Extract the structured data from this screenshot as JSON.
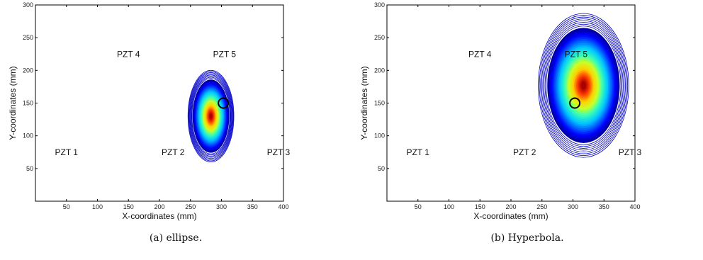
{
  "chart_data": [
    {
      "type": "contour",
      "caption": "(a) ellipse.",
      "xlabel": "X-coordinates (mm)",
      "ylabel": "Y-coordinates (mm)",
      "xlim": [
        0,
        400
      ],
      "ylim": [
        0,
        300
      ],
      "xticks": [
        50,
        100,
        150,
        200,
        250,
        300,
        350,
        400
      ],
      "yticks": [
        50,
        100,
        150,
        200,
        250,
        300
      ],
      "grid": false,
      "sensors": [
        {
          "label": "PZT 1",
          "x": 50,
          "y": 75
        },
        {
          "label": "PZT 2",
          "x": 222,
          "y": 75
        },
        {
          "label": "PZT 3",
          "x": 392,
          "y": 75
        },
        {
          "label": "PZT 4",
          "x": 150,
          "y": 225
        },
        {
          "label": "PZT 5",
          "x": 305,
          "y": 225
        }
      ],
      "probability_peak": {
        "x": 283,
        "y": 130,
        "rx": 37,
        "ry": 70
      },
      "actual_damage": {
        "x": 303,
        "y": 150
      }
    },
    {
      "type": "contour",
      "caption": "(b) Hyperbola.",
      "xlabel": "X-coordinates (mm)",
      "ylabel": "Y-coordinates (mm)",
      "xlim": [
        0,
        400
      ],
      "ylim": [
        0,
        300
      ],
      "xticks": [
        50,
        100,
        150,
        200,
        250,
        300,
        350,
        400
      ],
      "yticks": [
        50,
        100,
        150,
        200,
        250,
        300
      ],
      "grid": false,
      "sensors": [
        {
          "label": "PZT 1",
          "x": 50,
          "y": 75
        },
        {
          "label": "PZT 2",
          "x": 222,
          "y": 75
        },
        {
          "label": "PZT 3",
          "x": 392,
          "y": 75
        },
        {
          "label": "PZT 4",
          "x": 150,
          "y": 225
        },
        {
          "label": "PZT 5",
          "x": 305,
          "y": 225
        }
      ],
      "probability_peak": {
        "x": 317,
        "y": 177,
        "rx": 73,
        "ry": 110
      },
      "actual_damage": {
        "x": 303,
        "y": 150
      }
    }
  ]
}
